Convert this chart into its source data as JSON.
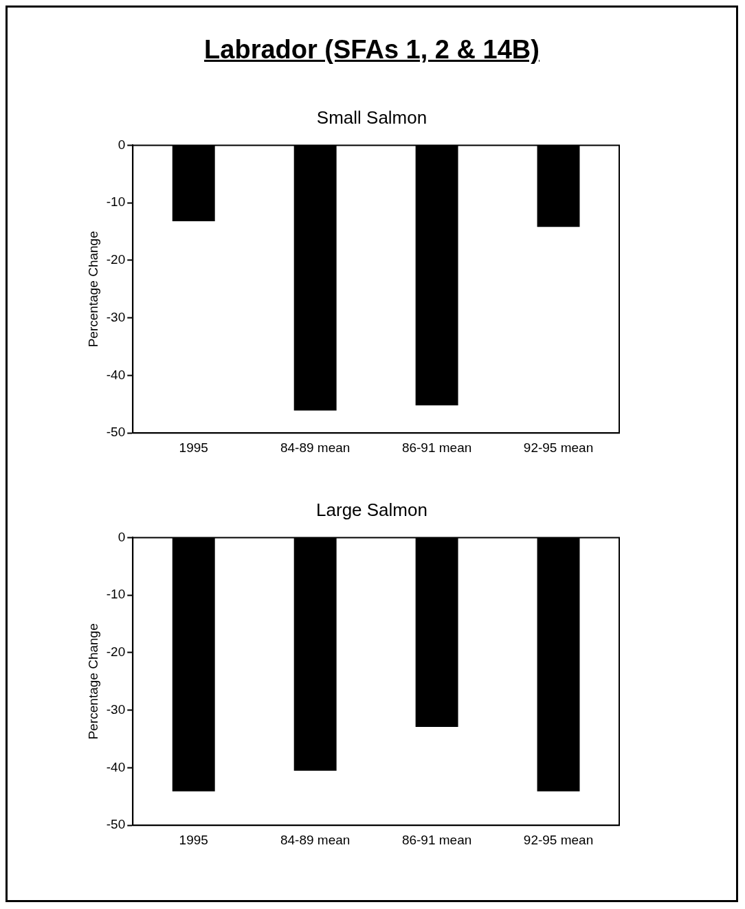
{
  "chart_data": [
    {
      "type": "bar",
      "title": "Labrador (SFAs 1, 2 & 14B)",
      "subtitle": "Small Salmon",
      "ylabel": "Percentage Change",
      "categories": [
        "1995",
        "84-89 mean",
        "86-91 mean",
        "92-95 mean"
      ],
      "values": [
        -13.2,
        -46.1,
        -45.2,
        -14.2
      ],
      "color": "#000000",
      "ylim": [
        -50,
        0
      ],
      "yticks": [
        -50,
        -40,
        -30,
        -20,
        -10,
        0
      ],
      "grid": false
    },
    {
      "type": "bar",
      "title": "Large Salmon",
      "ylabel": "Percentage Change",
      "categories": [
        "1995",
        "84-89 mean",
        "86-91 mean",
        "92-95 mean"
      ],
      "values": [
        -44.1,
        -40.5,
        -32.9,
        -44.1
      ],
      "color": "#000000",
      "ylim": [
        -50,
        0
      ],
      "yticks": [
        -50,
        -40,
        -30,
        -20,
        -10,
        0
      ],
      "grid": false
    }
  ]
}
